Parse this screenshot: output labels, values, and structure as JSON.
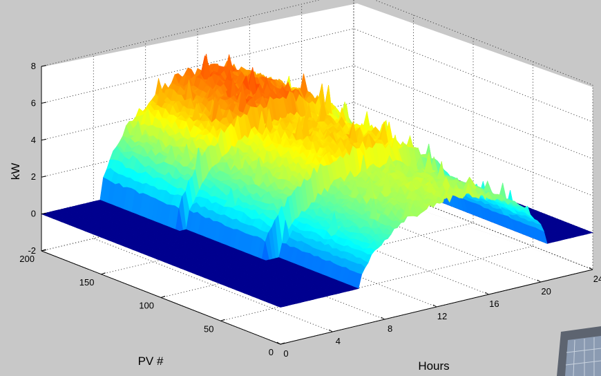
{
  "chart_data": {
    "type": "surface",
    "title": "",
    "xlabel": "Hours",
    "ylabel": "PV #",
    "zlabel": "kW",
    "x_ticks": [
      "0",
      "4",
      "8",
      "12",
      "16",
      "20",
      "24"
    ],
    "y_ticks": [
      "0",
      "50",
      "100",
      "150",
      "200"
    ],
    "z_ticks": [
      "-2",
      "0",
      "2",
      "4",
      "6",
      "8"
    ],
    "xlim": [
      0,
      24
    ],
    "ylim": [
      0,
      200
    ],
    "zlim": [
      -2,
      8
    ],
    "colormap": "jet",
    "grid": "on",
    "day_groups": [
      {
        "pv_range": [
          135,
          200
        ],
        "sunrise_hour": 4.5,
        "sunset_hour": 20.0,
        "peak_kw": 5.8
      },
      {
        "pv_range": [
          70,
          135
        ],
        "sunrise_hour": 5.0,
        "sunset_hour": 20.5,
        "peak_kw": 4.8
      },
      {
        "pv_range": [
          0,
          70
        ],
        "sunrise_hour": 6.0,
        "sunset_hour": 20.5,
        "peak_kw": 3.7
      }
    ],
    "baseline_kw": 0
  }
}
